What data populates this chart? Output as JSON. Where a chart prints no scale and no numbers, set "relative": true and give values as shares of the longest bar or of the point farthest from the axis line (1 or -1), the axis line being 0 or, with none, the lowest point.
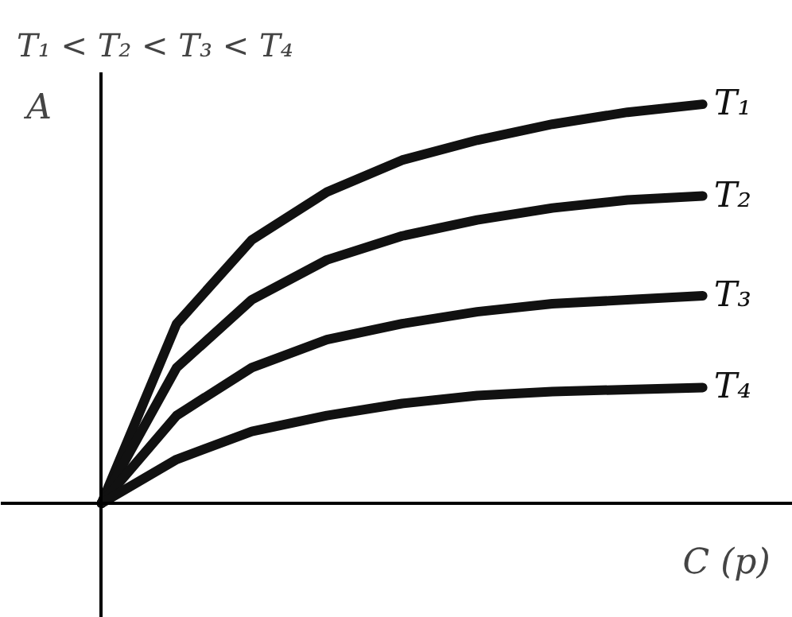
{
  "chart_data": {
    "type": "line",
    "title": "T₁ < T₂ < T₃ < T₄",
    "xlabel": "C (p)",
    "ylabel": "A",
    "relative": true,
    "legend": false,
    "grid": false,
    "marker": "none",
    "line_style": "solid",
    "categories": [
      null,
      null,
      null,
      null,
      null,
      null,
      null,
      null,
      null
    ],
    "series": [
      {
        "name": "T₁",
        "color": "#111111",
        "values": [
          0,
          0.45,
          0.66,
          0.78,
          0.86,
          0.91,
          0.95,
          0.98,
          1.0
        ]
      },
      {
        "name": "T₂",
        "color": "#111111",
        "values": [
          0,
          0.34,
          0.51,
          0.61,
          0.67,
          0.71,
          0.74,
          0.76,
          0.77
        ]
      },
      {
        "name": "T₃",
        "color": "#111111",
        "values": [
          0,
          0.22,
          0.34,
          0.41,
          0.45,
          0.48,
          0.5,
          0.51,
          0.52
        ]
      },
      {
        "name": "T₄",
        "color": "#111111",
        "values": [
          0,
          0.11,
          0.18,
          0.22,
          0.25,
          0.27,
          0.28,
          0.285,
          0.29
        ]
      }
    ]
  }
}
